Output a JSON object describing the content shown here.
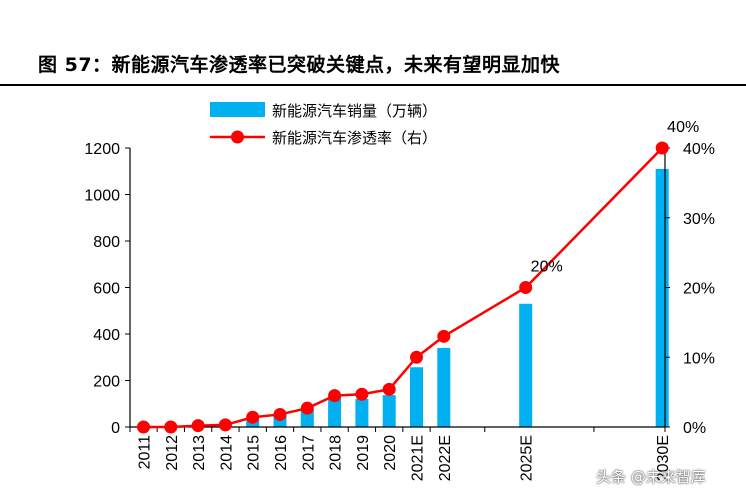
{
  "figure": {
    "title": "图 57：新能源汽车渗透率已突破关键点，未来有望明显加快",
    "watermark": "头条 @未来智库"
  },
  "chart_data": {
    "type": "bar",
    "categories": [
      "2011",
      "2012",
      "2013",
      "2014",
      "2015",
      "2016",
      "2017",
      "2018",
      "2019",
      "2020",
      "2021E",
      "2022E",
      "2025E",
      "2030E"
    ],
    "series": [
      {
        "name": "新能源汽车销量（万辆）",
        "type": "bar",
        "axis": "left",
        "color": "#00B0F0",
        "values": [
          1,
          1,
          2,
          8,
          33,
          51,
          78,
          126,
          121,
          137,
          257,
          340,
          530,
          1110
        ]
      },
      {
        "name": "新能源汽车渗透率（右）",
        "type": "line",
        "axis": "right",
        "color": "#FF0000",
        "values": [
          0,
          0,
          0.2,
          0.3,
          1.4,
          1.8,
          2.7,
          4.5,
          4.7,
          5.4,
          10,
          13,
          20,
          40
        ]
      }
    ],
    "y_left": {
      "ylim": [
        0,
        1200
      ],
      "ticks": [
        "0",
        "200",
        "400",
        "600",
        "800",
        "1000",
        "1200"
      ]
    },
    "y_right": {
      "ylim": [
        0,
        40
      ],
      "ticks": [
        "0%",
        "10%",
        "20%",
        "30%",
        "40%"
      ]
    },
    "annotations": [
      {
        "text": "20%",
        "category": "2025E"
      },
      {
        "text": "40%",
        "category": "2030E"
      }
    ],
    "legend_position": "top-left",
    "grid": false
  }
}
